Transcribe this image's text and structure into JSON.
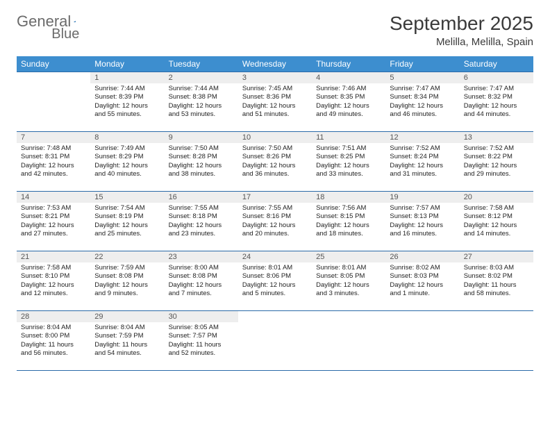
{
  "logo": {
    "part1": "General",
    "part2": "Blue"
  },
  "title": "September 2025",
  "location": "Melilla, Melilla, Spain",
  "weekday_header_bg": "#3d8ecf",
  "weekday_header_fg": "#ffffff",
  "grid_line_color": "#2a6aa8",
  "daynum_bg": "#eeeeee",
  "weekdays": [
    "Sunday",
    "Monday",
    "Tuesday",
    "Wednesday",
    "Thursday",
    "Friday",
    "Saturday"
  ],
  "weeks": [
    [
      null,
      {
        "n": "1",
        "sunrise": "Sunrise: 7:44 AM",
        "sunset": "Sunset: 8:39 PM",
        "daylight": "Daylight: 12 hours and 55 minutes."
      },
      {
        "n": "2",
        "sunrise": "Sunrise: 7:44 AM",
        "sunset": "Sunset: 8:38 PM",
        "daylight": "Daylight: 12 hours and 53 minutes."
      },
      {
        "n": "3",
        "sunrise": "Sunrise: 7:45 AM",
        "sunset": "Sunset: 8:36 PM",
        "daylight": "Daylight: 12 hours and 51 minutes."
      },
      {
        "n": "4",
        "sunrise": "Sunrise: 7:46 AM",
        "sunset": "Sunset: 8:35 PM",
        "daylight": "Daylight: 12 hours and 49 minutes."
      },
      {
        "n": "5",
        "sunrise": "Sunrise: 7:47 AM",
        "sunset": "Sunset: 8:34 PM",
        "daylight": "Daylight: 12 hours and 46 minutes."
      },
      {
        "n": "6",
        "sunrise": "Sunrise: 7:47 AM",
        "sunset": "Sunset: 8:32 PM",
        "daylight": "Daylight: 12 hours and 44 minutes."
      }
    ],
    [
      {
        "n": "7",
        "sunrise": "Sunrise: 7:48 AM",
        "sunset": "Sunset: 8:31 PM",
        "daylight": "Daylight: 12 hours and 42 minutes."
      },
      {
        "n": "8",
        "sunrise": "Sunrise: 7:49 AM",
        "sunset": "Sunset: 8:29 PM",
        "daylight": "Daylight: 12 hours and 40 minutes."
      },
      {
        "n": "9",
        "sunrise": "Sunrise: 7:50 AM",
        "sunset": "Sunset: 8:28 PM",
        "daylight": "Daylight: 12 hours and 38 minutes."
      },
      {
        "n": "10",
        "sunrise": "Sunrise: 7:50 AM",
        "sunset": "Sunset: 8:26 PM",
        "daylight": "Daylight: 12 hours and 36 minutes."
      },
      {
        "n": "11",
        "sunrise": "Sunrise: 7:51 AM",
        "sunset": "Sunset: 8:25 PM",
        "daylight": "Daylight: 12 hours and 33 minutes."
      },
      {
        "n": "12",
        "sunrise": "Sunrise: 7:52 AM",
        "sunset": "Sunset: 8:24 PM",
        "daylight": "Daylight: 12 hours and 31 minutes."
      },
      {
        "n": "13",
        "sunrise": "Sunrise: 7:52 AM",
        "sunset": "Sunset: 8:22 PM",
        "daylight": "Daylight: 12 hours and 29 minutes."
      }
    ],
    [
      {
        "n": "14",
        "sunrise": "Sunrise: 7:53 AM",
        "sunset": "Sunset: 8:21 PM",
        "daylight": "Daylight: 12 hours and 27 minutes."
      },
      {
        "n": "15",
        "sunrise": "Sunrise: 7:54 AM",
        "sunset": "Sunset: 8:19 PM",
        "daylight": "Daylight: 12 hours and 25 minutes."
      },
      {
        "n": "16",
        "sunrise": "Sunrise: 7:55 AM",
        "sunset": "Sunset: 8:18 PM",
        "daylight": "Daylight: 12 hours and 23 minutes."
      },
      {
        "n": "17",
        "sunrise": "Sunrise: 7:55 AM",
        "sunset": "Sunset: 8:16 PM",
        "daylight": "Daylight: 12 hours and 20 minutes."
      },
      {
        "n": "18",
        "sunrise": "Sunrise: 7:56 AM",
        "sunset": "Sunset: 8:15 PM",
        "daylight": "Daylight: 12 hours and 18 minutes."
      },
      {
        "n": "19",
        "sunrise": "Sunrise: 7:57 AM",
        "sunset": "Sunset: 8:13 PM",
        "daylight": "Daylight: 12 hours and 16 minutes."
      },
      {
        "n": "20",
        "sunrise": "Sunrise: 7:58 AM",
        "sunset": "Sunset: 8:12 PM",
        "daylight": "Daylight: 12 hours and 14 minutes."
      }
    ],
    [
      {
        "n": "21",
        "sunrise": "Sunrise: 7:58 AM",
        "sunset": "Sunset: 8:10 PM",
        "daylight": "Daylight: 12 hours and 12 minutes."
      },
      {
        "n": "22",
        "sunrise": "Sunrise: 7:59 AM",
        "sunset": "Sunset: 8:08 PM",
        "daylight": "Daylight: 12 hours and 9 minutes."
      },
      {
        "n": "23",
        "sunrise": "Sunrise: 8:00 AM",
        "sunset": "Sunset: 8:08 PM",
        "daylight": "Daylight: 12 hours and 7 minutes."
      },
      {
        "n": "24",
        "sunrise": "Sunrise: 8:01 AM",
        "sunset": "Sunset: 8:06 PM",
        "daylight": "Daylight: 12 hours and 5 minutes."
      },
      {
        "n": "25",
        "sunrise": "Sunrise: 8:01 AM",
        "sunset": "Sunset: 8:05 PM",
        "daylight": "Daylight: 12 hours and 3 minutes."
      },
      {
        "n": "26",
        "sunrise": "Sunrise: 8:02 AM",
        "sunset": "Sunset: 8:03 PM",
        "daylight": "Daylight: 12 hours and 1 minute."
      },
      {
        "n": "27",
        "sunrise": "Sunrise: 8:03 AM",
        "sunset": "Sunset: 8:02 PM",
        "daylight": "Daylight: 11 hours and 58 minutes."
      }
    ],
    [
      {
        "n": "28",
        "sunrise": "Sunrise: 8:04 AM",
        "sunset": "Sunset: 8:00 PM",
        "daylight": "Daylight: 11 hours and 56 minutes."
      },
      {
        "n": "29",
        "sunrise": "Sunrise: 8:04 AM",
        "sunset": "Sunset: 7:59 PM",
        "daylight": "Daylight: 11 hours and 54 minutes."
      },
      {
        "n": "30",
        "sunrise": "Sunrise: 8:05 AM",
        "sunset": "Sunset: 7:57 PM",
        "daylight": "Daylight: 11 hours and 52 minutes."
      },
      null,
      null,
      null,
      null
    ]
  ]
}
